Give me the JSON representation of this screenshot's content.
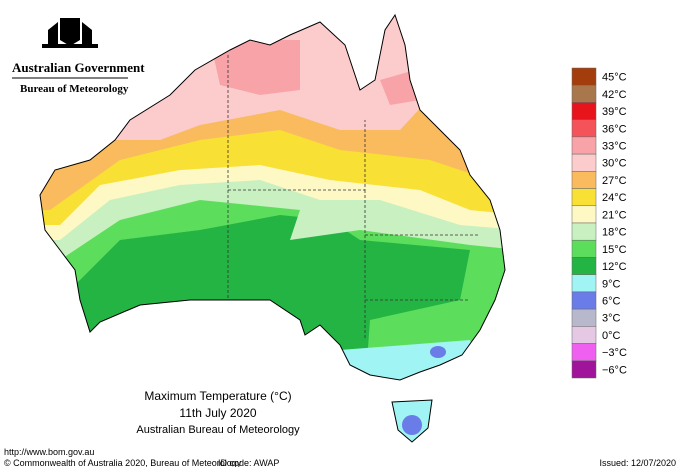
{
  "header": {
    "government": "Australian Government",
    "bureau": "Bureau of Meteorology"
  },
  "caption": {
    "title": "Maximum Temperature (°C)",
    "date": "11th July 2020",
    "source": "Australian Bureau of Meteorology"
  },
  "legend": {
    "items": [
      {
        "label": "45°C",
        "color": "#a33d0c"
      },
      {
        "label": "42°C",
        "color": "#a8784c"
      },
      {
        "label": "39°C",
        "color": "#e8141c"
      },
      {
        "label": "36°C",
        "color": "#f4535a"
      },
      {
        "label": "33°C",
        "color": "#f7a3a8"
      },
      {
        "label": "30°C",
        "color": "#fccccc"
      },
      {
        "label": "27°C",
        "color": "#f9bb5e"
      },
      {
        "label": "24°C",
        "color": "#f8e034"
      },
      {
        "label": "21°C",
        "color": "#fdf8c4"
      },
      {
        "label": "18°C",
        "color": "#c8f0c0"
      },
      {
        "label": "15°C",
        "color": "#5cde5c"
      },
      {
        "label": "12°C",
        "color": "#24b444"
      },
      {
        "label": "9°C",
        "color": "#a0f4f4"
      },
      {
        "label": "6°C",
        "color": "#6a7ce8"
      },
      {
        "label": "3°C",
        "color": "#b8b8cc"
      },
      {
        "label": "0°C",
        "color": "#e4c8e4"
      },
      {
        "label": "−3°C",
        "color": "#f060f0"
      },
      {
        "label": "−6°C",
        "color": "#a0149c"
      }
    ]
  },
  "footer": {
    "url": "http://www.bom.gov.au",
    "copyright": "© Commonwealth of Australia 2020, Bureau of Meteorology",
    "id_code": "ID code: AWAP",
    "issued": "Issued: 12/07/2020"
  }
}
